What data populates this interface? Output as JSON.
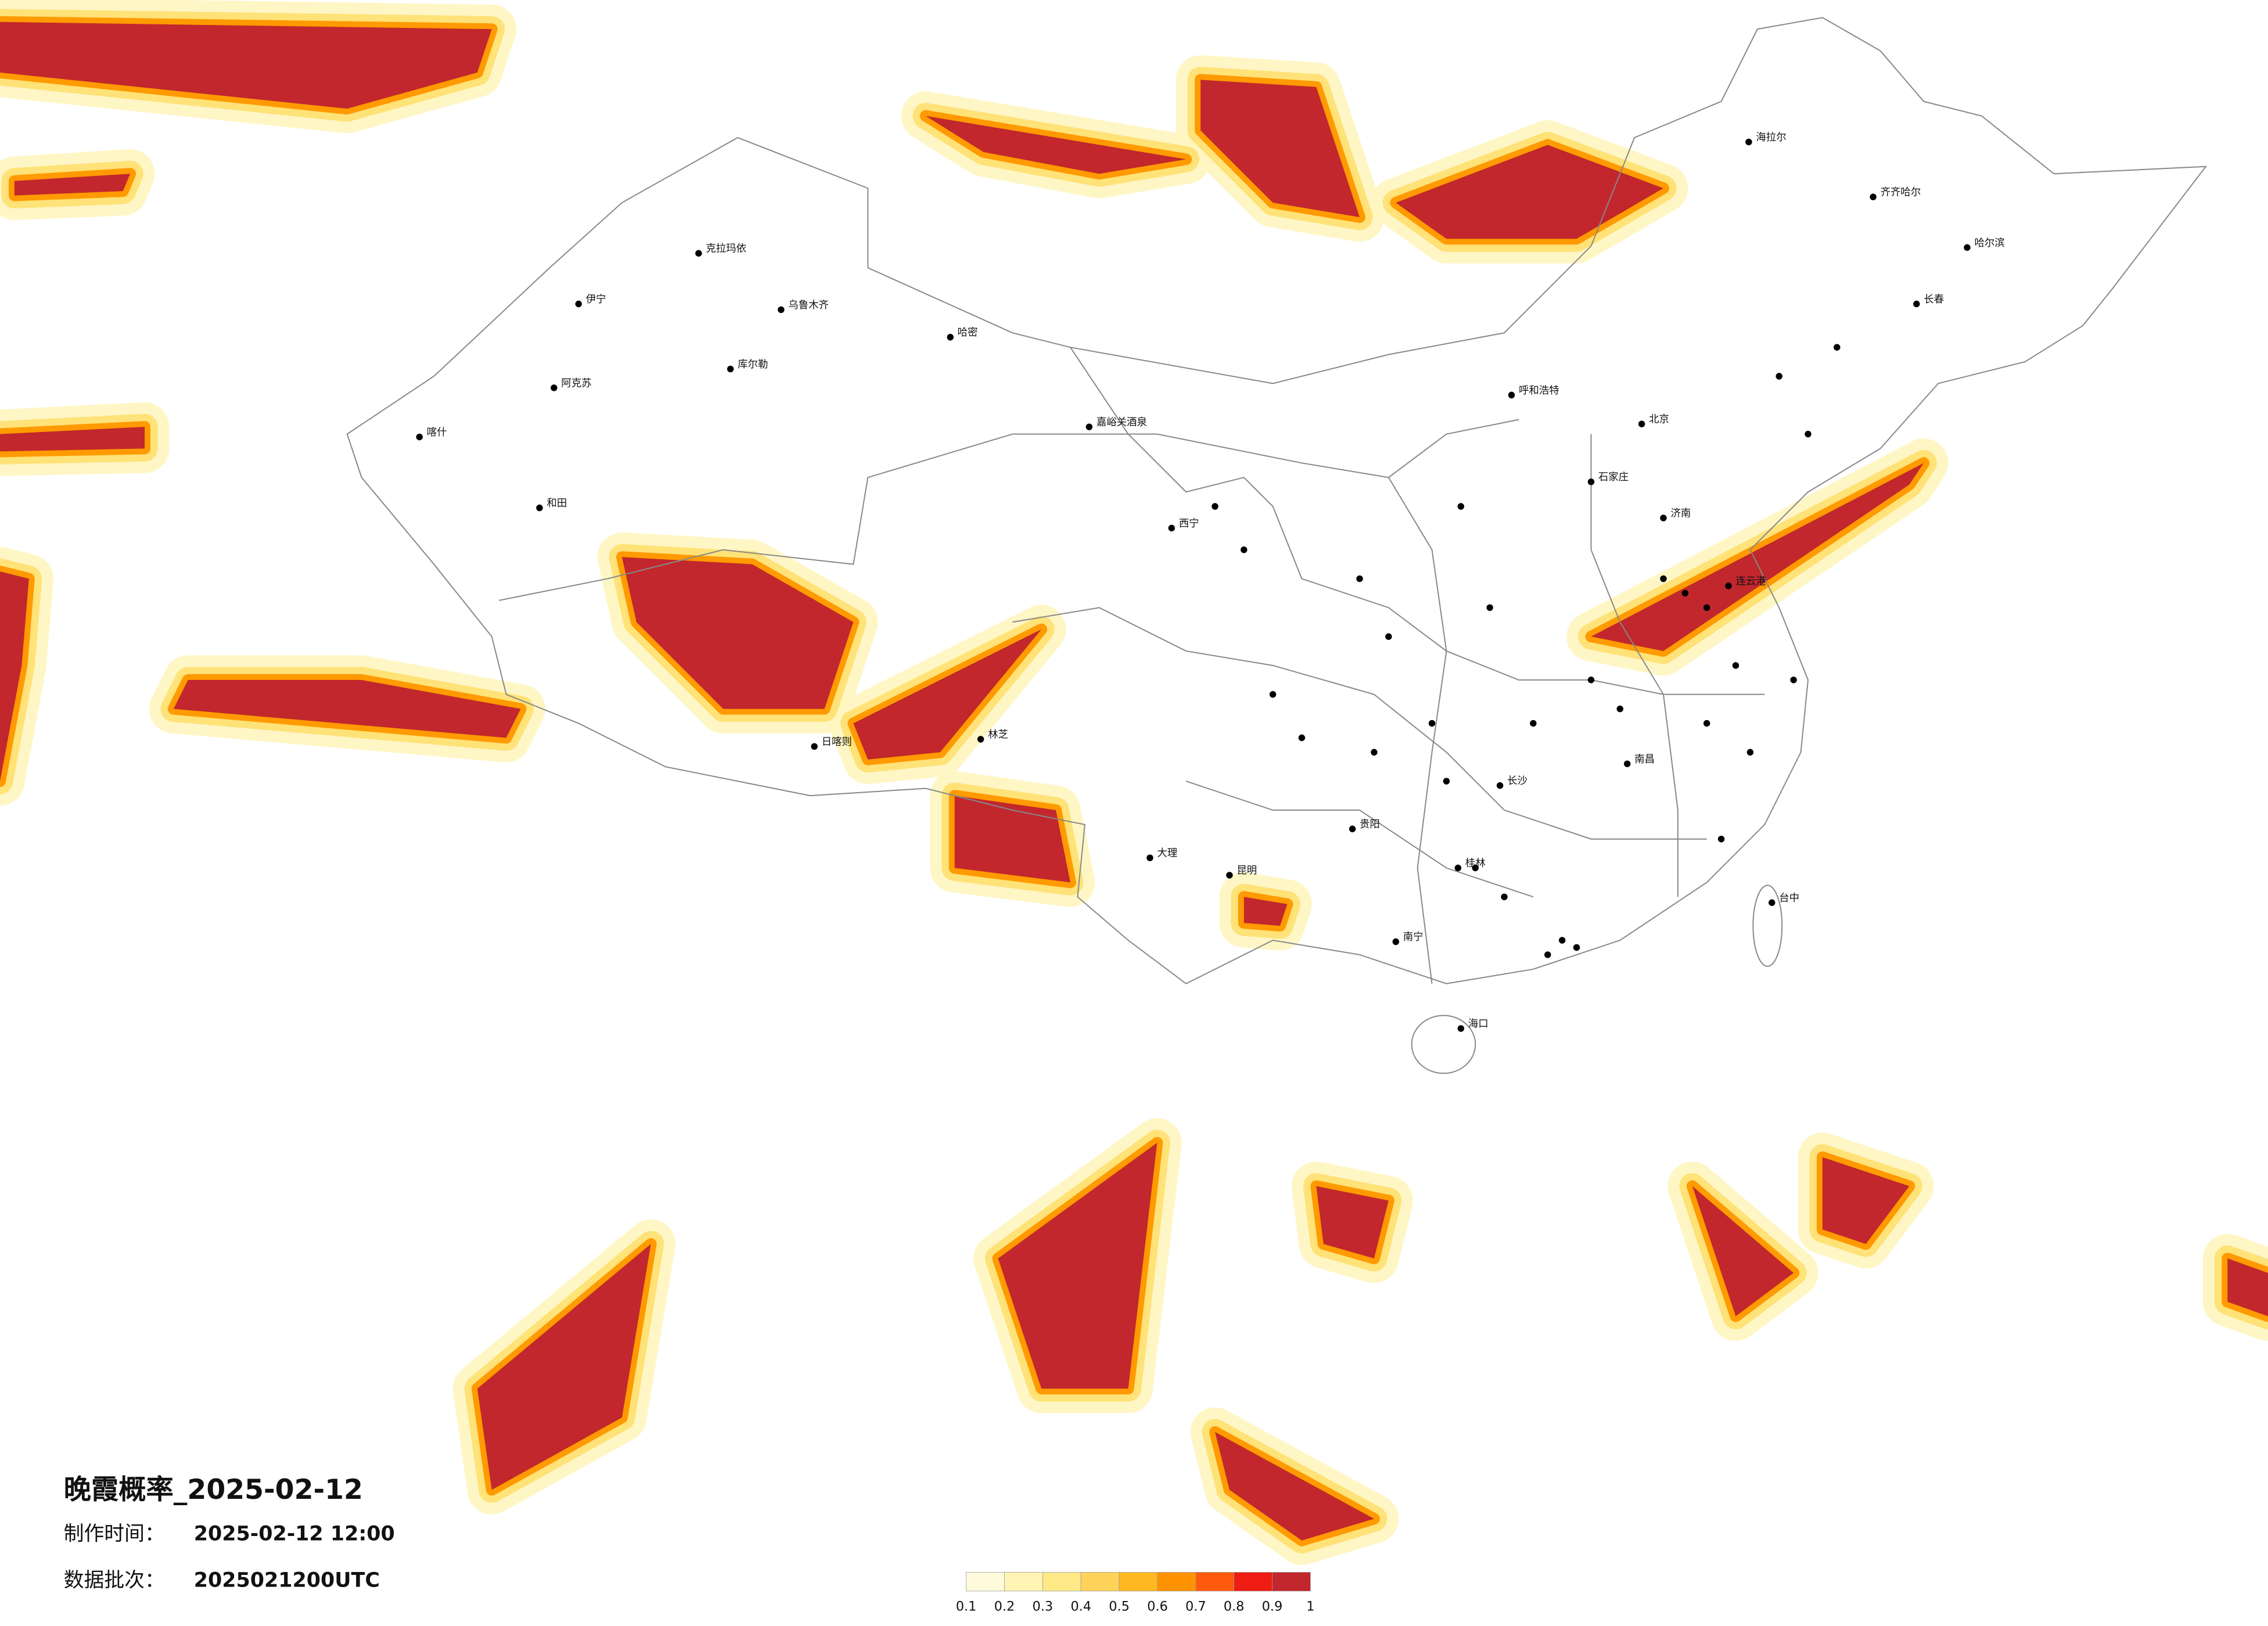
{
  "title": "晚霞概率_2025-02-12",
  "made_label": "制作时间：",
  "made_time": "2025-02-12 12:00",
  "batch_label": "数据批次：",
  "batch": "2025021200UTC",
  "colorbar": {
    "ticks": [
      0.1,
      0.2,
      0.3,
      0.4,
      0.5,
      0.6,
      0.7,
      0.8,
      0.9,
      1
    ],
    "colors": [
      "#fffbdc",
      "#fff4b4",
      "#ffe987",
      "#ffd35a",
      "#ffb81f",
      "#ff9200",
      "#ff5a0c",
      "#ee1c12",
      "#c1272d"
    ]
  },
  "cities": [
    "克拉玛依",
    "乌鲁木齐",
    "伊宁",
    "阿克苏",
    "喀什",
    "和田",
    "哈密",
    "库尔勒",
    "嘉峪关酒泉",
    "日喀则",
    "林芝",
    "西宁",
    "海拉尔",
    "齐齐哈尔",
    "哈尔滨",
    "长春",
    "呼和浩特",
    "北京",
    "石家庄",
    "济南",
    "南宁",
    "海口",
    "台中",
    "贵阳",
    "昆明",
    "大理",
    "桂林",
    "长沙",
    "连云港",
    "南昌"
  ]
}
